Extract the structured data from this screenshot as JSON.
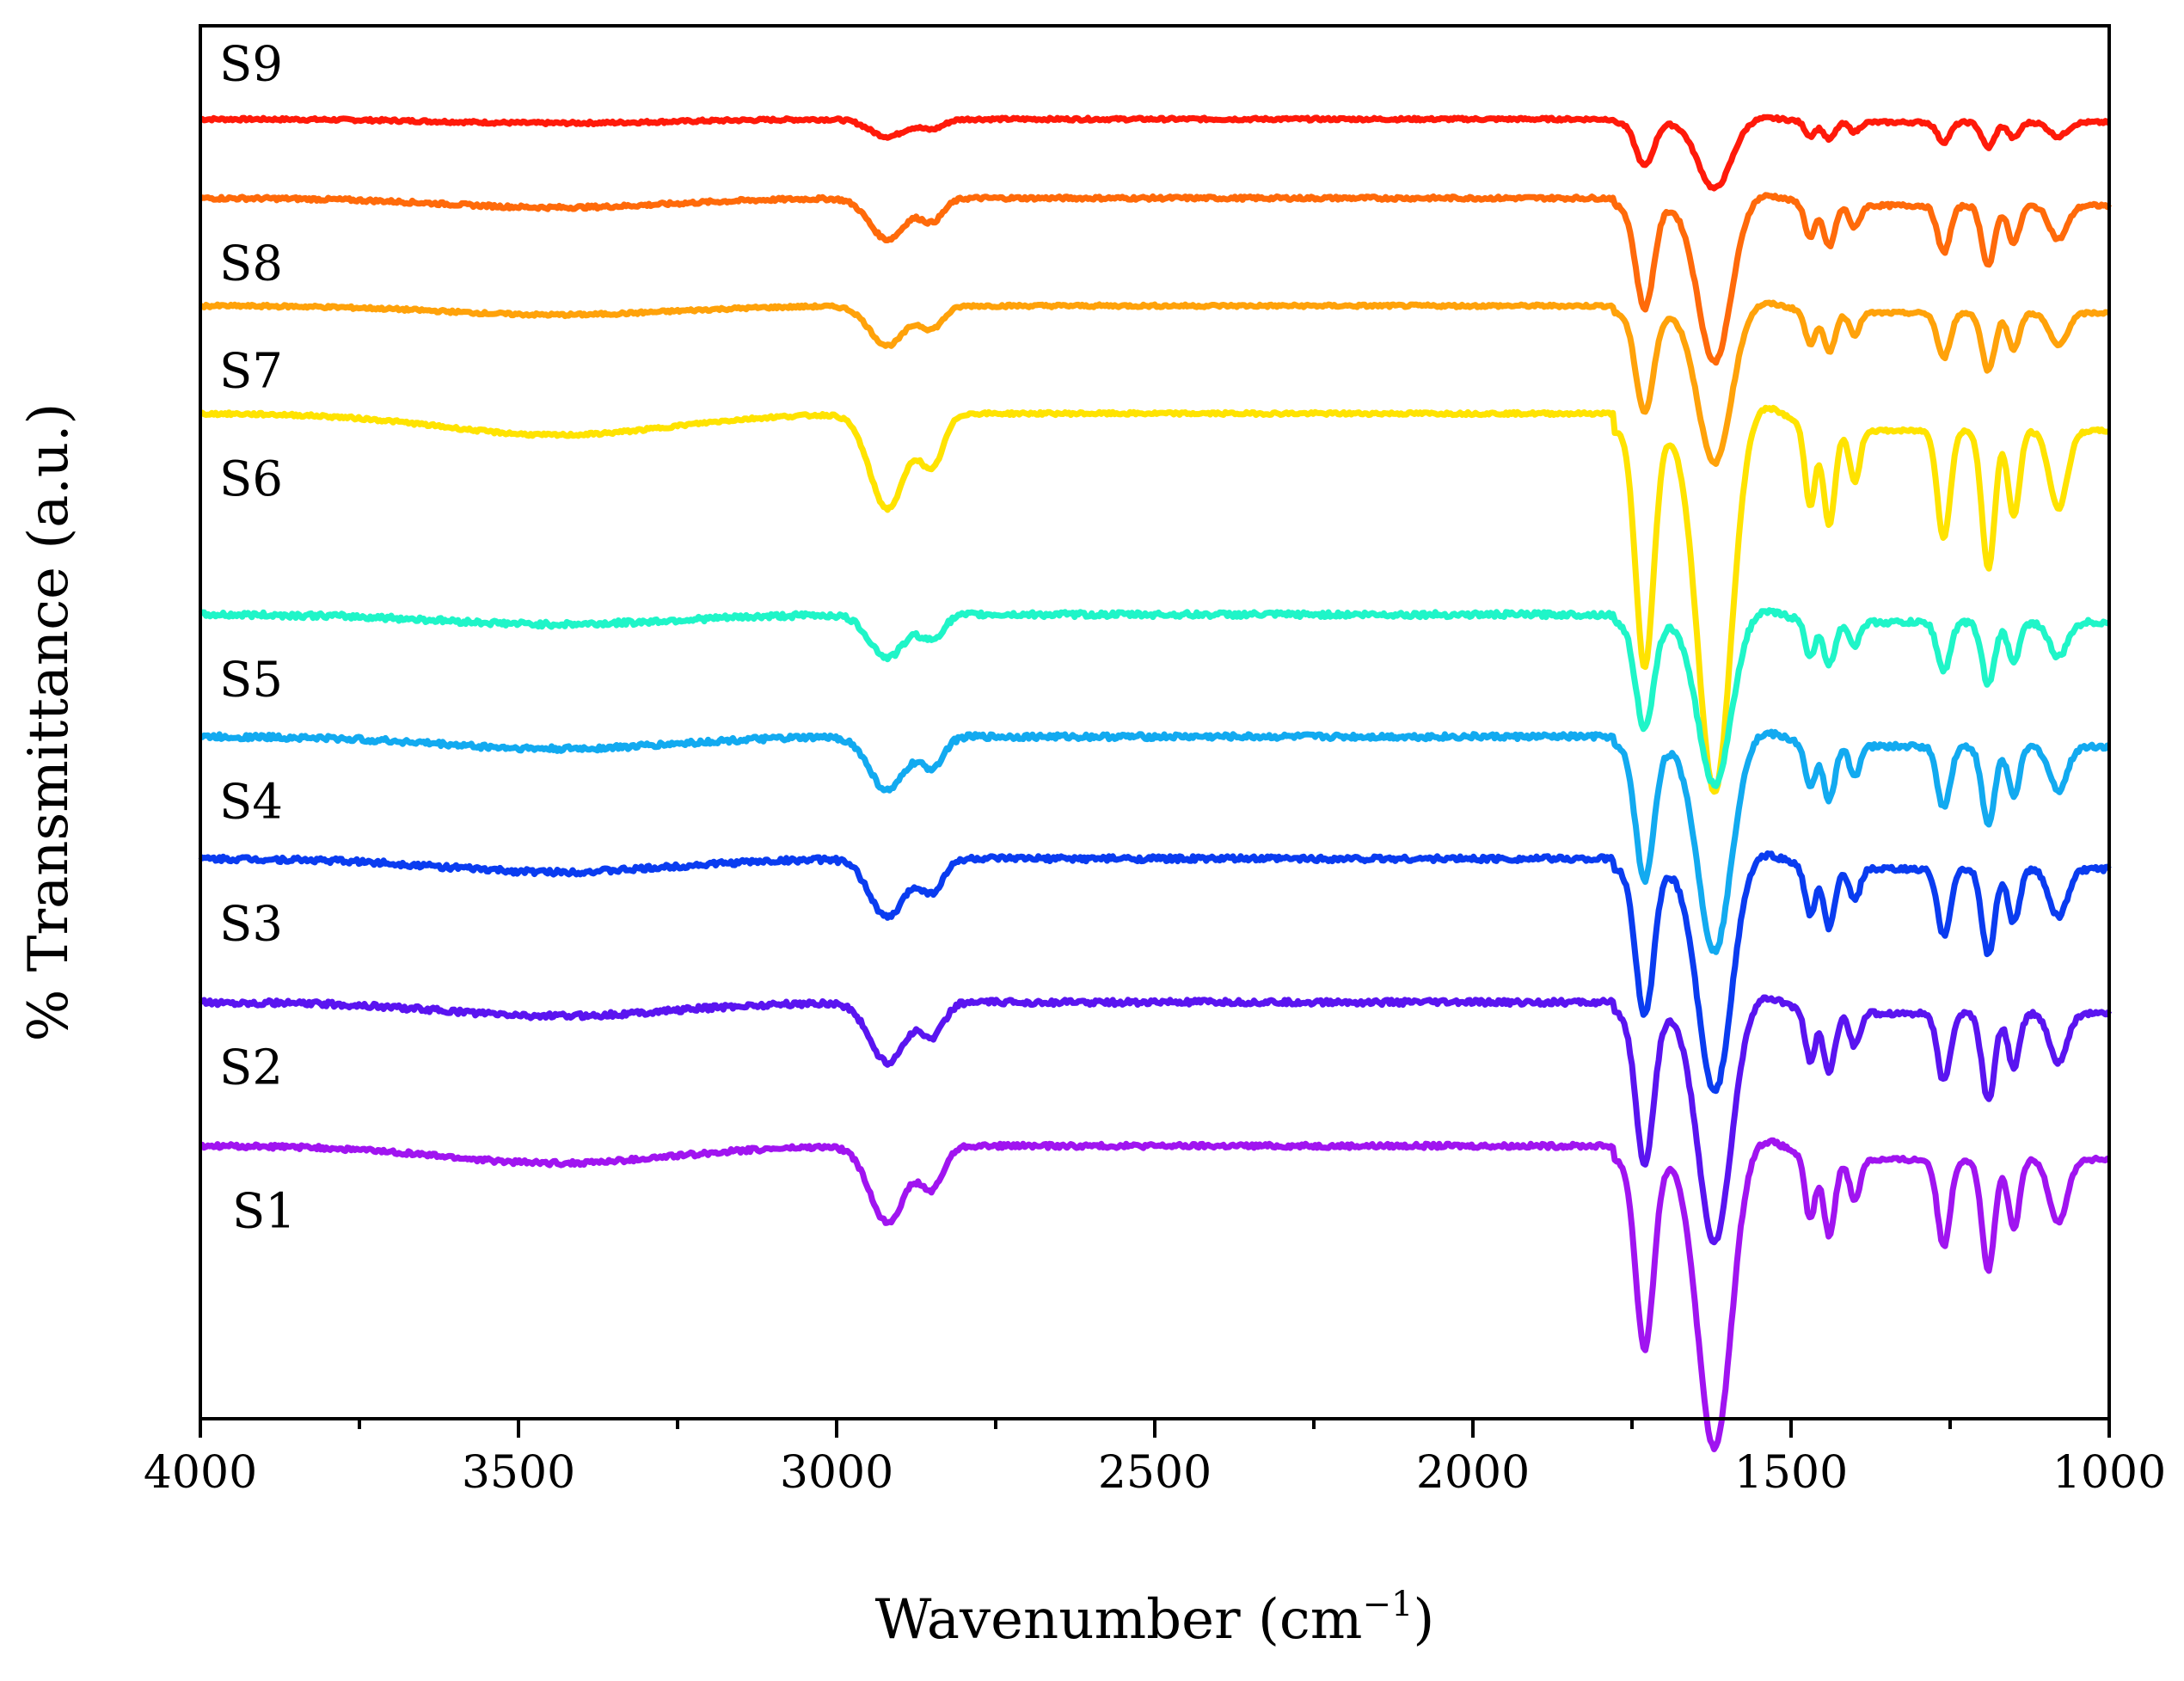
{
  "chart_data": {
    "type": "line",
    "xlabel": "Wavenumber (cm",
    "xlabel_sup": "−1",
    "xlabel_close": ")",
    "ylabel": "% Transmittance (a.u.)",
    "xlim": [
      4000,
      1000
    ],
    "x_reversed": true,
    "y_ticks_shown": false,
    "grid": false,
    "legend": "inline labels at left",
    "x_ticks": [
      "4000",
      "3500",
      "3000",
      "2500",
      "2000",
      "1500",
      "1000"
    ],
    "series": [
      {
        "name": "S9",
        "color": "#ff1a0a",
        "baseline": 9.05,
        "scale": 0.55,
        "noise": 0.01
      },
      {
        "name": "S8",
        "color": "#ff6a0a",
        "baseline": 8.5,
        "scale": 1.3,
        "noise": 0.012
      },
      {
        "name": "S7",
        "color": "#ffa20a",
        "baseline": 7.75,
        "scale": 1.25,
        "noise": 0.01
      },
      {
        "name": "S6",
        "color": "#ffe300",
        "baseline": 7.0,
        "scale": 3.0,
        "noise": 0.01
      },
      {
        "name": "S5",
        "color": "#1ff5c8",
        "baseline": 5.6,
        "scale": 1.35,
        "noise": 0.018
      },
      {
        "name": "S4",
        "color": "#12aaf0",
        "baseline": 4.75,
        "scale": 1.7,
        "noise": 0.018
      },
      {
        "name": "S3",
        "color": "#0a3cf0",
        "baseline": 3.9,
        "scale": 1.85,
        "noise": 0.018
      },
      {
        "name": "S2",
        "color": "#5a14f0",
        "baseline": 2.9,
        "scale": 1.9,
        "noise": 0.018
      },
      {
        "name": "S1",
        "color": "#a014f0",
        "baseline": 1.9,
        "scale": 2.4,
        "noise": 0.015
      }
    ],
    "peak_positions": [
      3440,
      2920,
      2850,
      1730,
      1620,
      1470,
      1440,
      1400,
      1260,
      1190,
      1150,
      1080
    ]
  }
}
